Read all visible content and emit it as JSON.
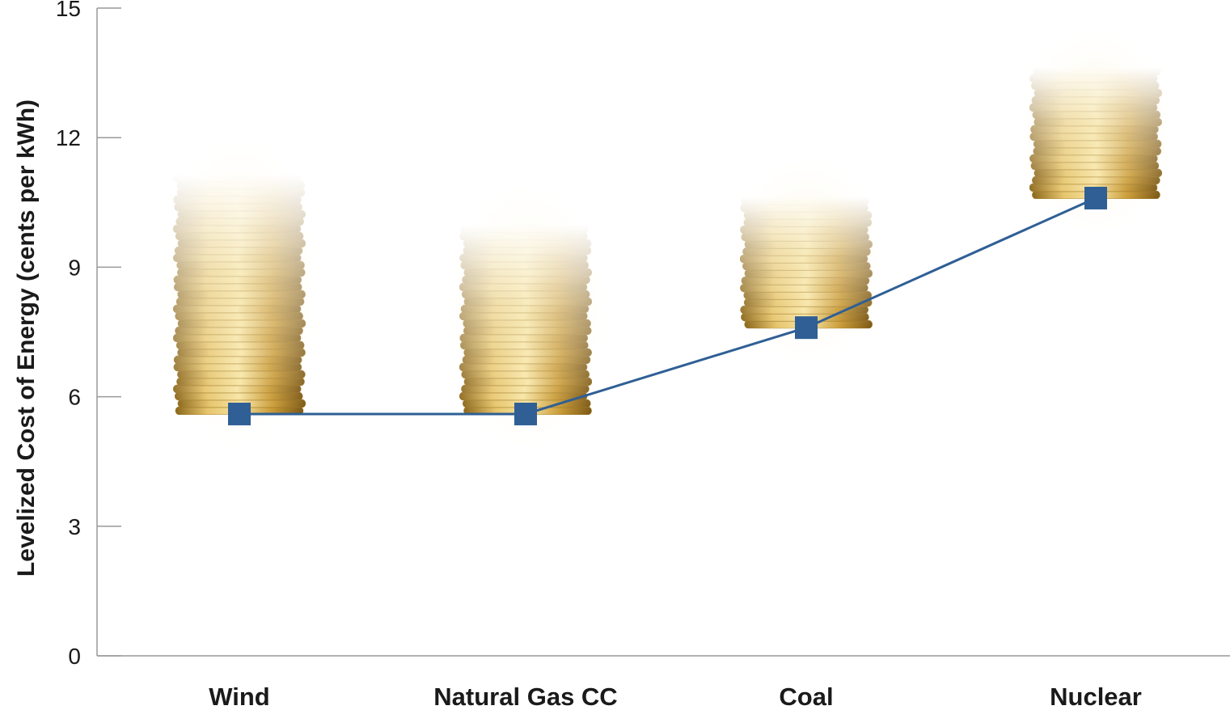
{
  "chart_data": {
    "type": "line",
    "title": "",
    "xlabel": "",
    "ylabel": "Levelized Cost of Energy (cents per kWh)",
    "categories": [
      "Wind",
      "Natural Gas CC",
      "Coal",
      "Nuclear"
    ],
    "values": [
      5.6,
      5.6,
      7.6,
      10.6
    ],
    "ylim": [
      0,
      15
    ],
    "yticks": [
      0,
      3,
      6,
      9,
      12,
      15
    ],
    "grid": false,
    "marker": "square",
    "colors": {
      "series": "#2f5f95",
      "coin": "#c9a13c",
      "axis": "#999999"
    }
  }
}
